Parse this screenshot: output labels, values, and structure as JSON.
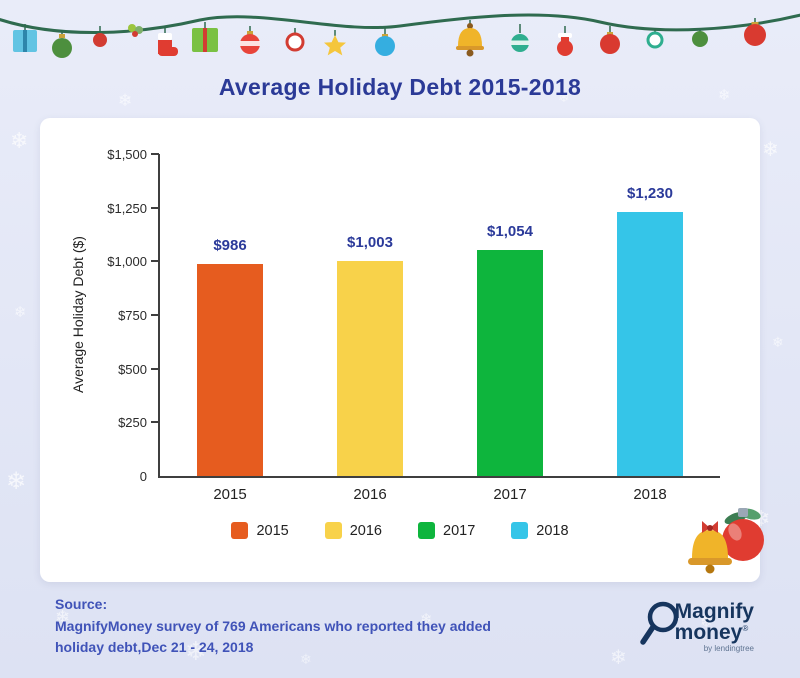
{
  "title": "Average Holiday Debt 2015-2018",
  "chart_data": {
    "type": "bar",
    "title": "Average Holiday Debt 2015-2018",
    "categories": [
      "2015",
      "2016",
      "2017",
      "2018"
    ],
    "values": [
      986,
      1003,
      1054,
      1230
    ],
    "value_labels": [
      "$986",
      "$1,003",
      "$1,054",
      "$1,230"
    ],
    "colors": [
      "#E65C1F",
      "#F8D24A",
      "#0EB53D",
      "#35C5E8"
    ],
    "xlabel": "",
    "ylabel": "Average Holiday Debt ($)",
    "ylim": [
      0,
      1500
    ],
    "yticks": [
      0,
      250,
      500,
      750,
      1000,
      1250,
      1500
    ],
    "ytick_labels": [
      "0",
      "$250",
      "$500",
      "$750",
      "$1,000",
      "$1,250",
      "$1,500"
    ],
    "grid": false,
    "legend_position": "bottom",
    "legend": [
      "2015",
      "2016",
      "2017",
      "2018"
    ]
  },
  "source": {
    "label": "Source:",
    "line1": "MagnifyMoney survey of 769 Americans who reported they added",
    "line2": "holiday debt,Dec 21 - 24, 2018"
  },
  "logo": {
    "text_magnify": "Magnify",
    "text_money": "money",
    "reg": "®",
    "byline": "by lendingtree"
  },
  "decor": {
    "snowflake": "❄"
  }
}
